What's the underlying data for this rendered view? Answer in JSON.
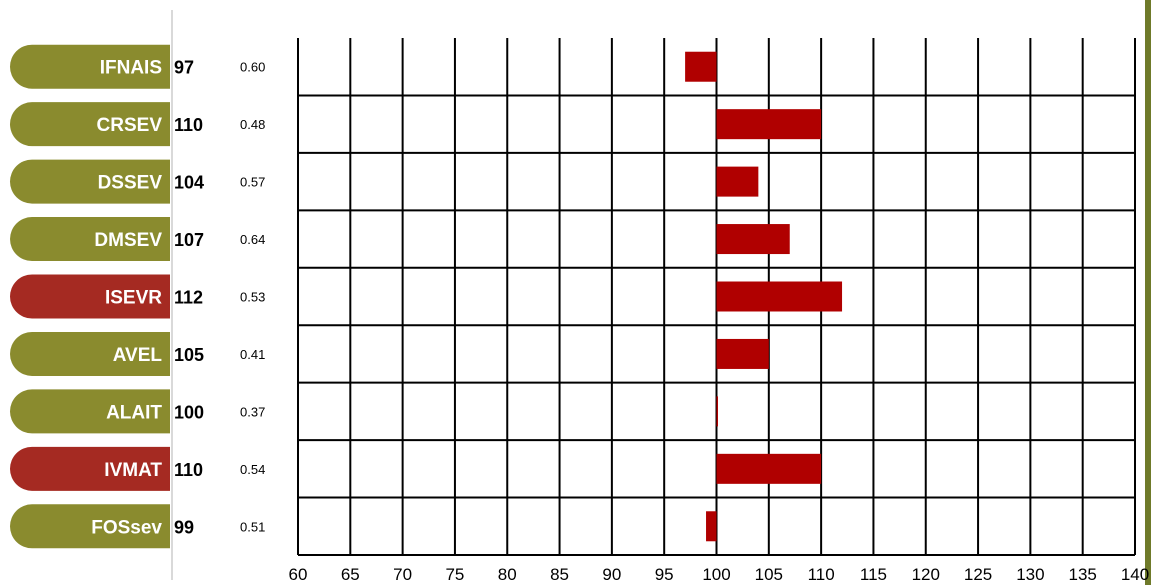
{
  "chart_data": {
    "type": "bar",
    "orientation": "horizontal",
    "categories": [
      "IFNAIS",
      "CRSEV",
      "DSSEV",
      "DMSEV",
      "ISEVR",
      "AVEL",
      "ALAIT",
      "IVMAT",
      "FOSsev"
    ],
    "values": [
      97,
      110,
      104,
      107,
      112,
      105,
      100,
      110,
      99
    ],
    "reliability": [
      "0.60",
      "0.48",
      "0.57",
      "0.64",
      "0.53",
      "0.41",
      "0.37",
      "0.54",
      "0.51"
    ],
    "label_colors": [
      "#8a8b2e",
      "#8a8b2e",
      "#8a8b2e",
      "#8a8b2e",
      "#a52a22",
      "#8a8b2e",
      "#8a8b2e",
      "#a52a22",
      "#8a8b2e"
    ],
    "bar_color": "#b00000",
    "base_value": 100,
    "xlim": [
      60,
      140
    ],
    "x_ticks": [
      60,
      65,
      70,
      75,
      80,
      85,
      90,
      95,
      100,
      105,
      110,
      115,
      120,
      125,
      130,
      135,
      140
    ],
    "grid": true,
    "title": "",
    "xlabel": "",
    "ylabel": ""
  },
  "colors": {
    "olive": "#8a8b2e",
    "red": "#a52a22",
    "right_border": "#6f7a2a",
    "left_rule": "#d9d9d9"
  }
}
